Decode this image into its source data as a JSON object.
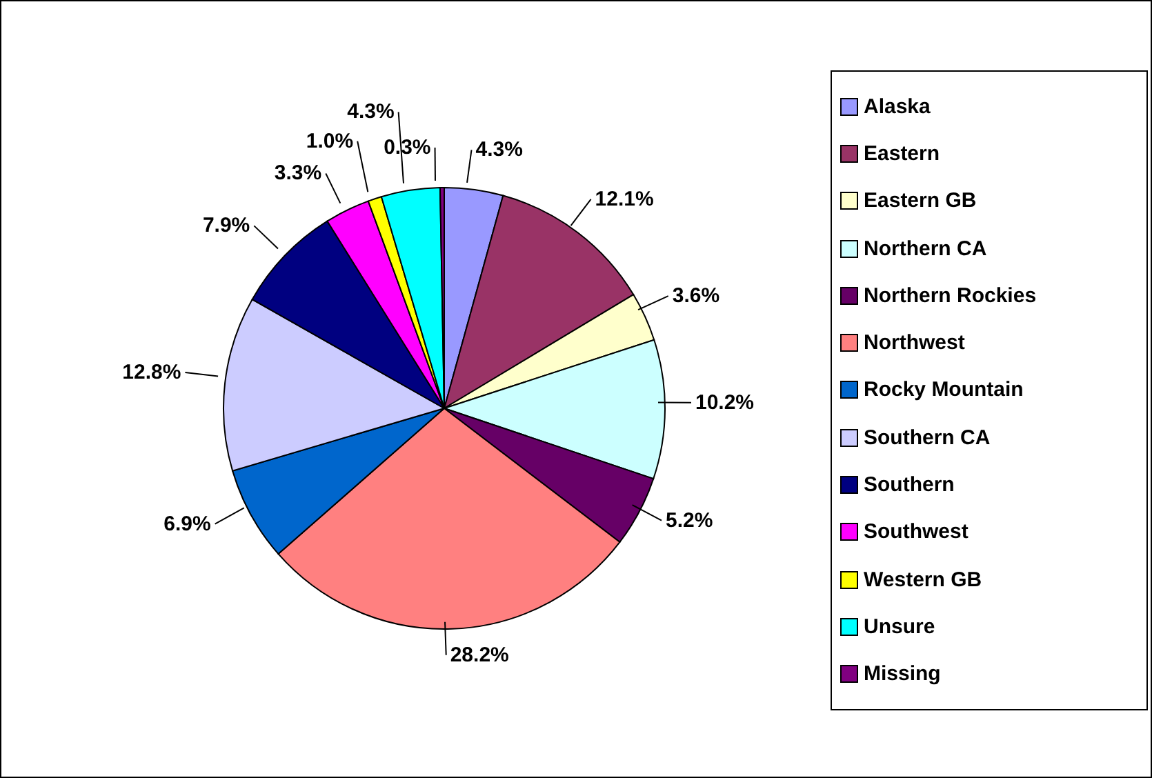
{
  "chart_data": {
    "type": "pie",
    "categories": [
      "Alaska",
      "Eastern",
      "Eastern GB",
      "Northern CA",
      "Northern Rockies",
      "Northwest",
      "Rocky Mountain",
      "Southern CA",
      "Southern",
      "Southwest",
      "Western GB",
      "Unsure",
      "Missing"
    ],
    "values": [
      4.3,
      12.1,
      3.6,
      10.2,
      5.2,
      28.2,
      6.9,
      12.8,
      7.9,
      3.3,
      1.0,
      4.3,
      0.3
    ],
    "colors": [
      "#9999ff",
      "#993366",
      "#ffffcc",
      "#ccffff",
      "#660066",
      "#ff8080",
      "#0066cc",
      "#ccccff",
      "#000080",
      "#ff00ff",
      "#ffff00",
      "#00ffff",
      "#800080"
    ],
    "value_labels": [
      "4.3%",
      "12.1%",
      "3.6%",
      "10.2%",
      "5.2%",
      "28.2%",
      "6.9%",
      "12.8%",
      "7.9%",
      "3.3%",
      "1.0%",
      "4.3%",
      "0.3%"
    ],
    "legend": "right"
  }
}
